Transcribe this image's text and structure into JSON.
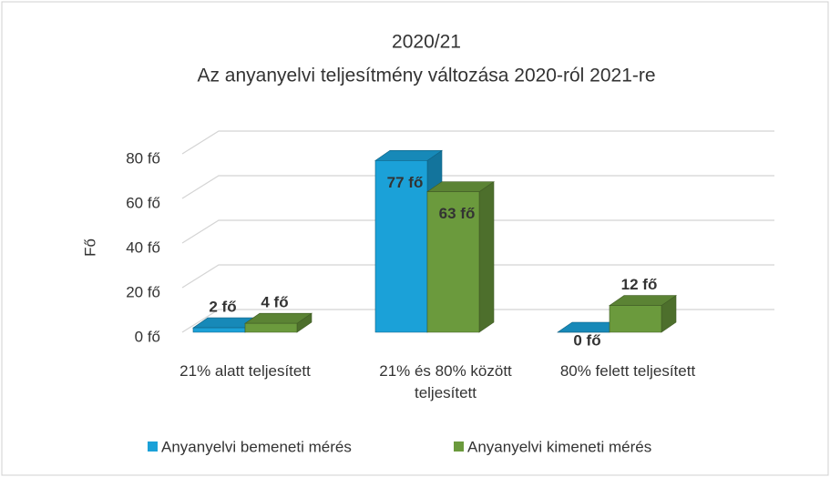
{
  "chart_data": {
    "type": "bar3d",
    "title": "2020/21",
    "subtitle": "Az anyanyelvi teljesítmény változása 2020-ról 2021-re",
    "ylabel": "Fő",
    "categories": [
      "21% alatt teljesített",
      "21% és 80% között teljesített",
      "80% felett teljesített"
    ],
    "series": [
      {
        "name": "Anyanyelvi bemeneti mérés",
        "color": "#1ba1d8",
        "values": [
          2,
          77,
          0
        ],
        "value_labels": [
          "2 fő",
          "77 fő",
          "0 fő"
        ]
      },
      {
        "name": "Anyanyelvi kimeneti mérés",
        "color": "#6b9a3d",
        "values": [
          4,
          63,
          12
        ],
        "value_labels": [
          "4 fő",
          "63 fő",
          "12 fő"
        ]
      }
    ],
    "ylim": [
      0,
      80
    ],
    "yticks": [
      {
        "value": 0,
        "label": "0 fő"
      },
      {
        "value": 20,
        "label": "20 fő"
      },
      {
        "value": 40,
        "label": "40 fő"
      },
      {
        "value": 60,
        "label": "60 fő"
      },
      {
        "value": 80,
        "label": "80 fő"
      }
    ],
    "grid": true,
    "legend": "bottom"
  }
}
